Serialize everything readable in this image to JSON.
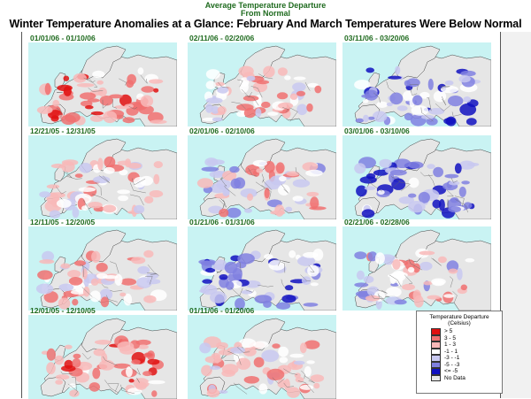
{
  "header": {
    "line1": "Average Temperature Departure",
    "line2": "From Normal"
  },
  "title": "Winter Temperature Anomalies at a Glance: February And March Temperatures Were Below Normal",
  "panels": [
    {
      "date": "01/01/06 - 01/10/06",
      "anomaly": "warm"
    },
    {
      "date": "02/11/06 - 02/20/06",
      "anomaly": "mild"
    },
    {
      "date": "03/11/06 - 03/20/06",
      "anomaly": "cold"
    },
    {
      "date": "12/21/05 - 12/31/05",
      "anomaly": "mild"
    },
    {
      "date": "02/01/06 - 02/10/06",
      "anomaly": "mixed"
    },
    {
      "date": "03/01/06 - 03/10/06",
      "anomaly": "cold"
    },
    {
      "date": "12/11/05 - 12/20/05",
      "anomaly": "mild"
    },
    {
      "date": "01/21/06 - 01/31/06",
      "anomaly": "cold"
    },
    {
      "date": "02/21/06 - 02/28/06",
      "anomaly": "mixed"
    },
    {
      "date": "12/01/05 - 12/10/05",
      "anomaly": "warm"
    },
    {
      "date": "01/11/06 - 01/20/06",
      "anomaly": "mild"
    }
  ],
  "legend": {
    "title": "Temperature Departure",
    "subtitle": "(Celsius)",
    "items": [
      {
        "label": "> 5",
        "color": "#e01010"
      },
      {
        "label": "3 - 5",
        "color": "#f07070"
      },
      {
        "label": "1 - 3",
        "color": "#f8b8b8"
      },
      {
        "label": "-1 - 1",
        "color": "#ffffff"
      },
      {
        "label": "-3 - -1",
        "color": "#c8c8f0"
      },
      {
        "label": "-5 - -3",
        "color": "#8080e0"
      },
      {
        "label": "<= -5",
        "color": "#1010c0"
      },
      {
        "label": "No Data",
        "color": "#e8e8e8"
      }
    ]
  },
  "colors": {
    "sea": "#c9f3f3",
    "land": "#e6e6e6",
    "label_green": "#1f6b1f"
  }
}
